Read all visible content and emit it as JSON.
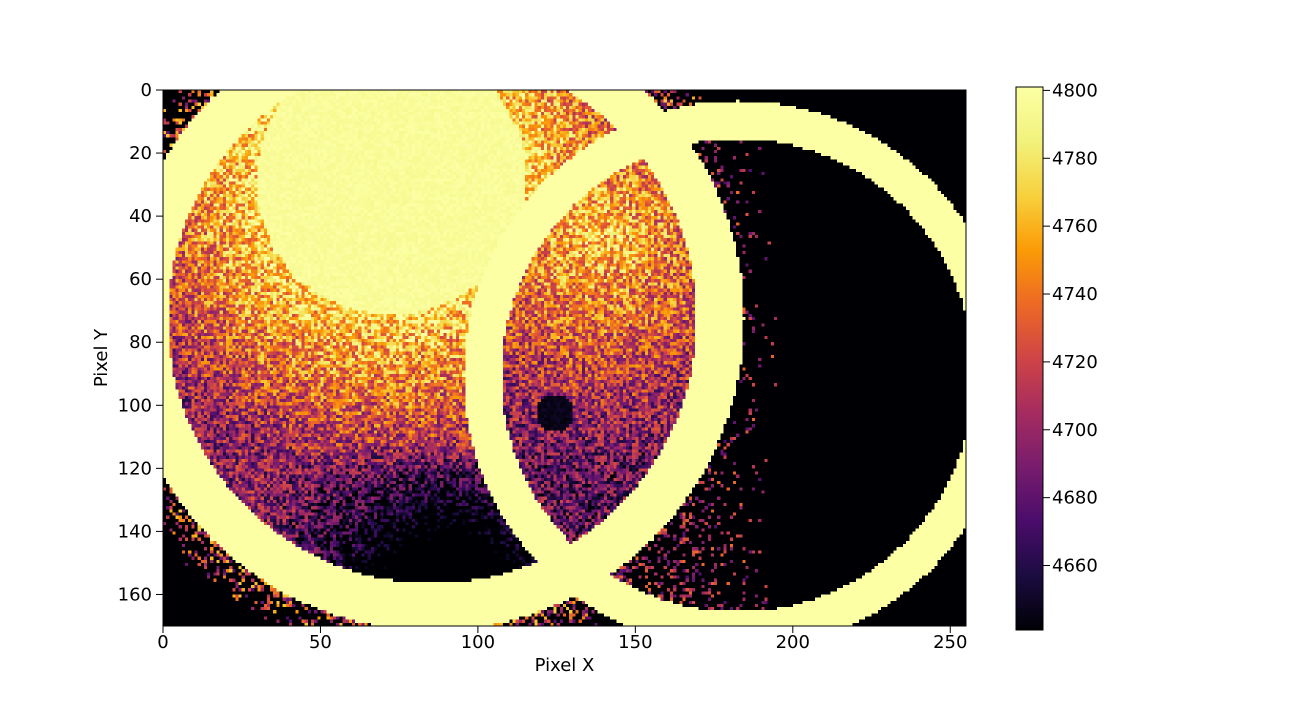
{
  "chart_data": {
    "type": "heatmap",
    "title": "",
    "xlabel": "Pixel X",
    "ylabel": "Pixel Y",
    "xlim": [
      0,
      255
    ],
    "ylim": [
      170,
      0
    ],
    "image_width": 255,
    "image_height": 170,
    "x_ticks": [
      0,
      50,
      100,
      150,
      200,
      250
    ],
    "x_tick_labels": [
      "0",
      "50",
      "100",
      "150",
      "200",
      "250"
    ],
    "y_ticks": [
      0,
      20,
      40,
      60,
      80,
      100,
      120,
      140,
      160
    ],
    "y_tick_labels": [
      "0",
      "20",
      "40",
      "60",
      "80",
      "100",
      "120",
      "140",
      "160"
    ],
    "colormap": "inferno",
    "colorbar": {
      "vmin": 4641,
      "vmax": 4801,
      "ticks": [
        4660,
        4680,
        4700,
        4720,
        4740,
        4760,
        4780,
        4800
      ],
      "tick_labels": [
        "4660",
        "4680",
        "4700",
        "4720",
        "4740",
        "4760",
        "4780",
        "4800"
      ]
    },
    "features": [
      {
        "name": "left ring",
        "center": [
          85,
          72
        ],
        "inner_radius": 84,
        "outer_radius": 99,
        "value": 4800
      },
      {
        "name": "right ring",
        "center": [
          182,
          90
        ],
        "inner_radius": 75,
        "outer_radius": 87,
        "value": 4800
      },
      {
        "name": "left disk interior",
        "center": [
          85,
          72
        ],
        "radius": 84,
        "bright_center": [
          75,
          30
        ],
        "range": [
          4641,
          4800
        ]
      },
      {
        "name": "lens region",
        "range": [
          4641,
          4790
        ]
      },
      {
        "name": "right disk interior",
        "value": 4641
      },
      {
        "name": "background",
        "value": 4641
      }
    ]
  }
}
